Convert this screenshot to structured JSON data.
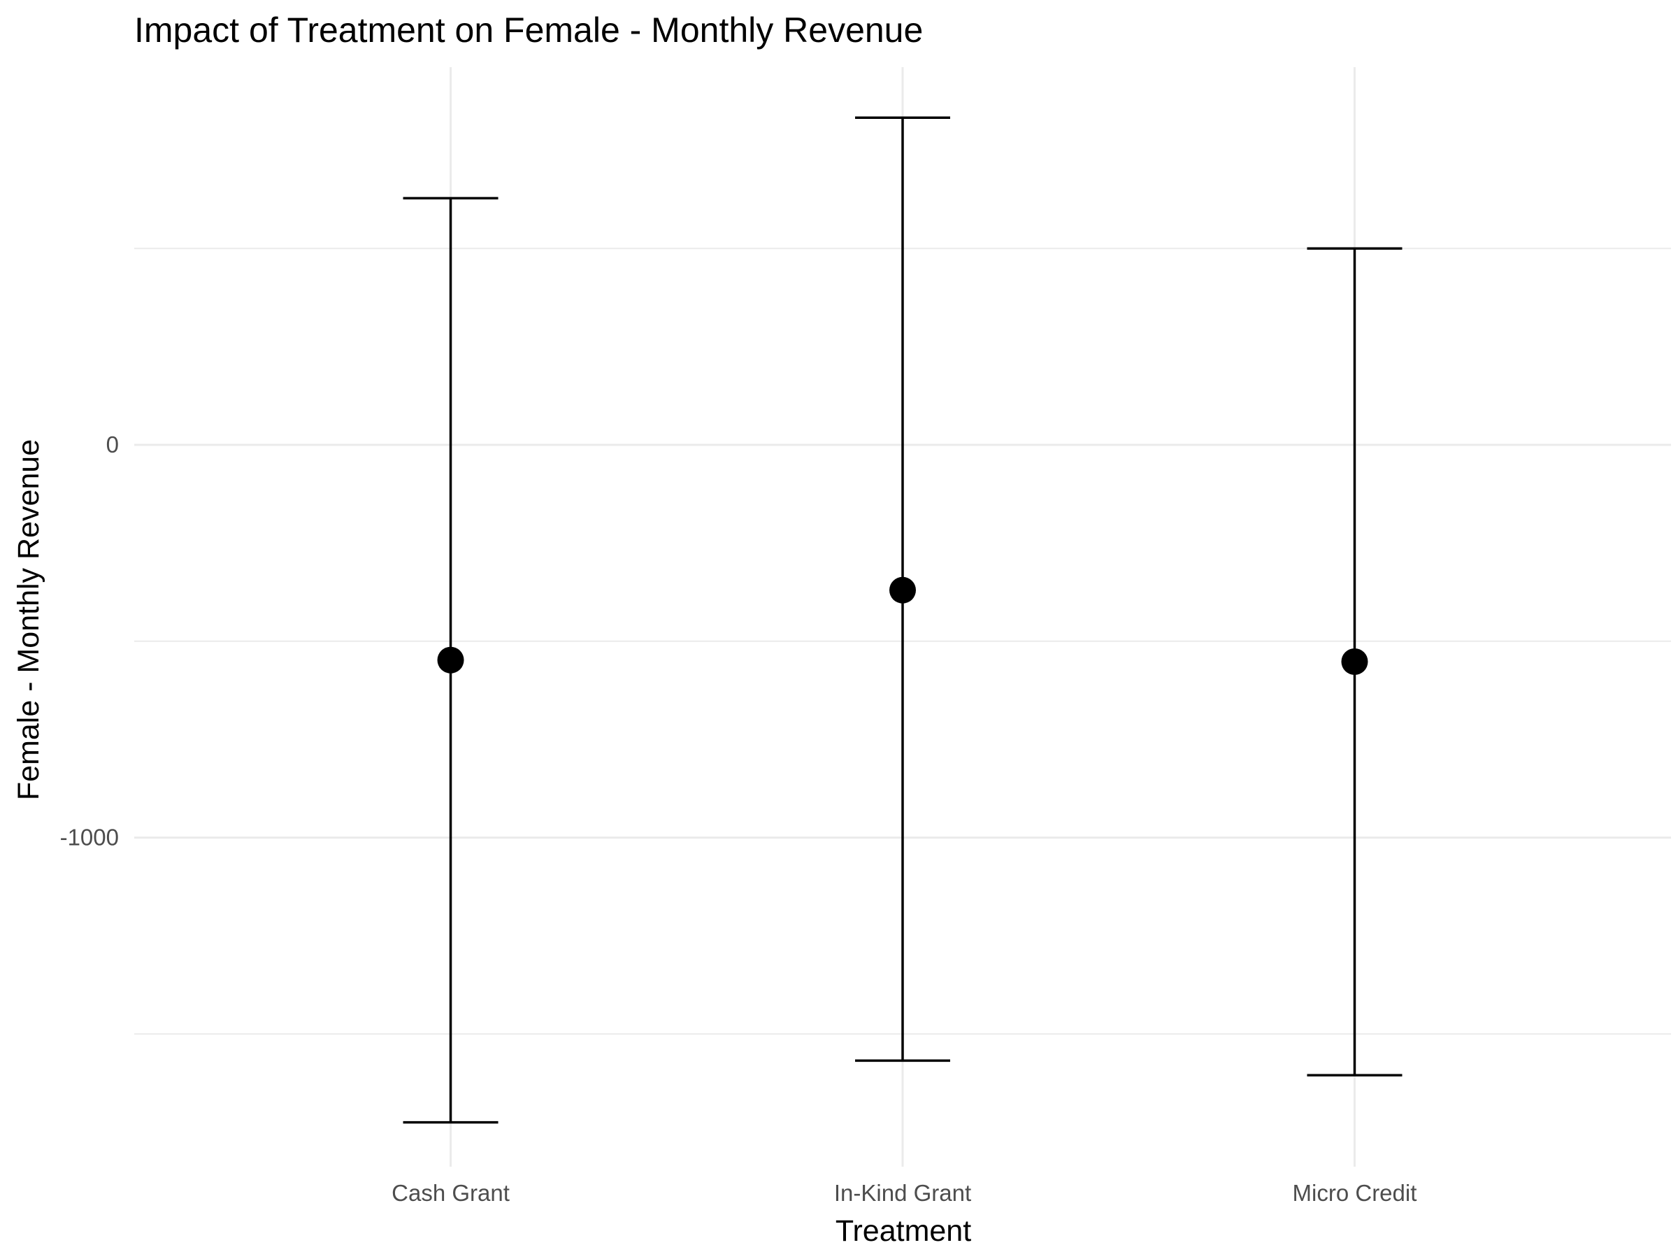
{
  "chart_data": {
    "type": "errorbar",
    "title": "Impact of Treatment on Female - Monthly Revenue",
    "xlabel": "Treatment",
    "ylabel": "Female - Monthly Revenue",
    "categories": [
      "Cash Grant",
      "In-Kind Grant",
      "Micro Credit"
    ],
    "estimates": [
      -548,
      -370,
      -552
    ],
    "ci_lower": [
      -1725,
      -1568,
      -1605
    ],
    "ci_upper": [
      628,
      833,
      500
    ],
    "ylim": [
      -1790,
      960
    ],
    "yticks": [
      0,
      -1000
    ],
    "ytick_labels": [
      "0",
      "-1000"
    ],
    "grid": true,
    "legend": "none",
    "colors": {
      "point": "#000000",
      "errorbar": "#000000",
      "grid": "#ebebeb",
      "tick_text": "#4d4d4d"
    }
  }
}
